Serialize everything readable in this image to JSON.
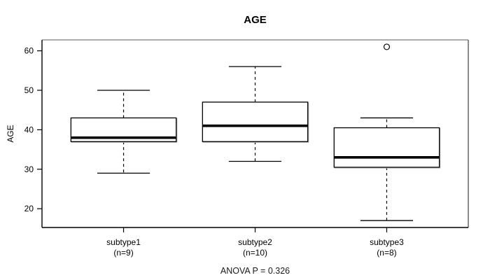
{
  "chart_data": {
    "type": "boxplot",
    "title": "AGE",
    "ylabel": "AGE",
    "xlabel": "",
    "footer": "ANOVA P = 0.326",
    "anova_p": 0.326,
    "ylim": [
      15.24,
      62.76
    ],
    "yticks": [
      20,
      30,
      40,
      50,
      60
    ],
    "grid": false,
    "legend": null,
    "colors": {
      "box_fill": "#ffffff",
      "line": "#000000",
      "border_top": "#909090",
      "border_right": "#5a5a5a"
    },
    "groups": [
      {
        "label": "subtype1",
        "count_label": "(n=9)",
        "n": 9,
        "whisker_low": 29,
        "q1": 37,
        "median": 38,
        "q3": 43,
        "whisker_high": 50,
        "outliers": []
      },
      {
        "label": "subtype2",
        "count_label": "(n=10)",
        "n": 10,
        "whisker_low": 32,
        "q1": 37,
        "median": 41,
        "q3": 47,
        "whisker_high": 56,
        "outliers": []
      },
      {
        "label": "subtype3",
        "count_label": "(n=8)",
        "n": 8,
        "whisker_low": 17,
        "q1": 30.5,
        "median": 33,
        "q3": 40.5,
        "whisker_high": 43,
        "outliers": [
          61
        ]
      }
    ]
  }
}
